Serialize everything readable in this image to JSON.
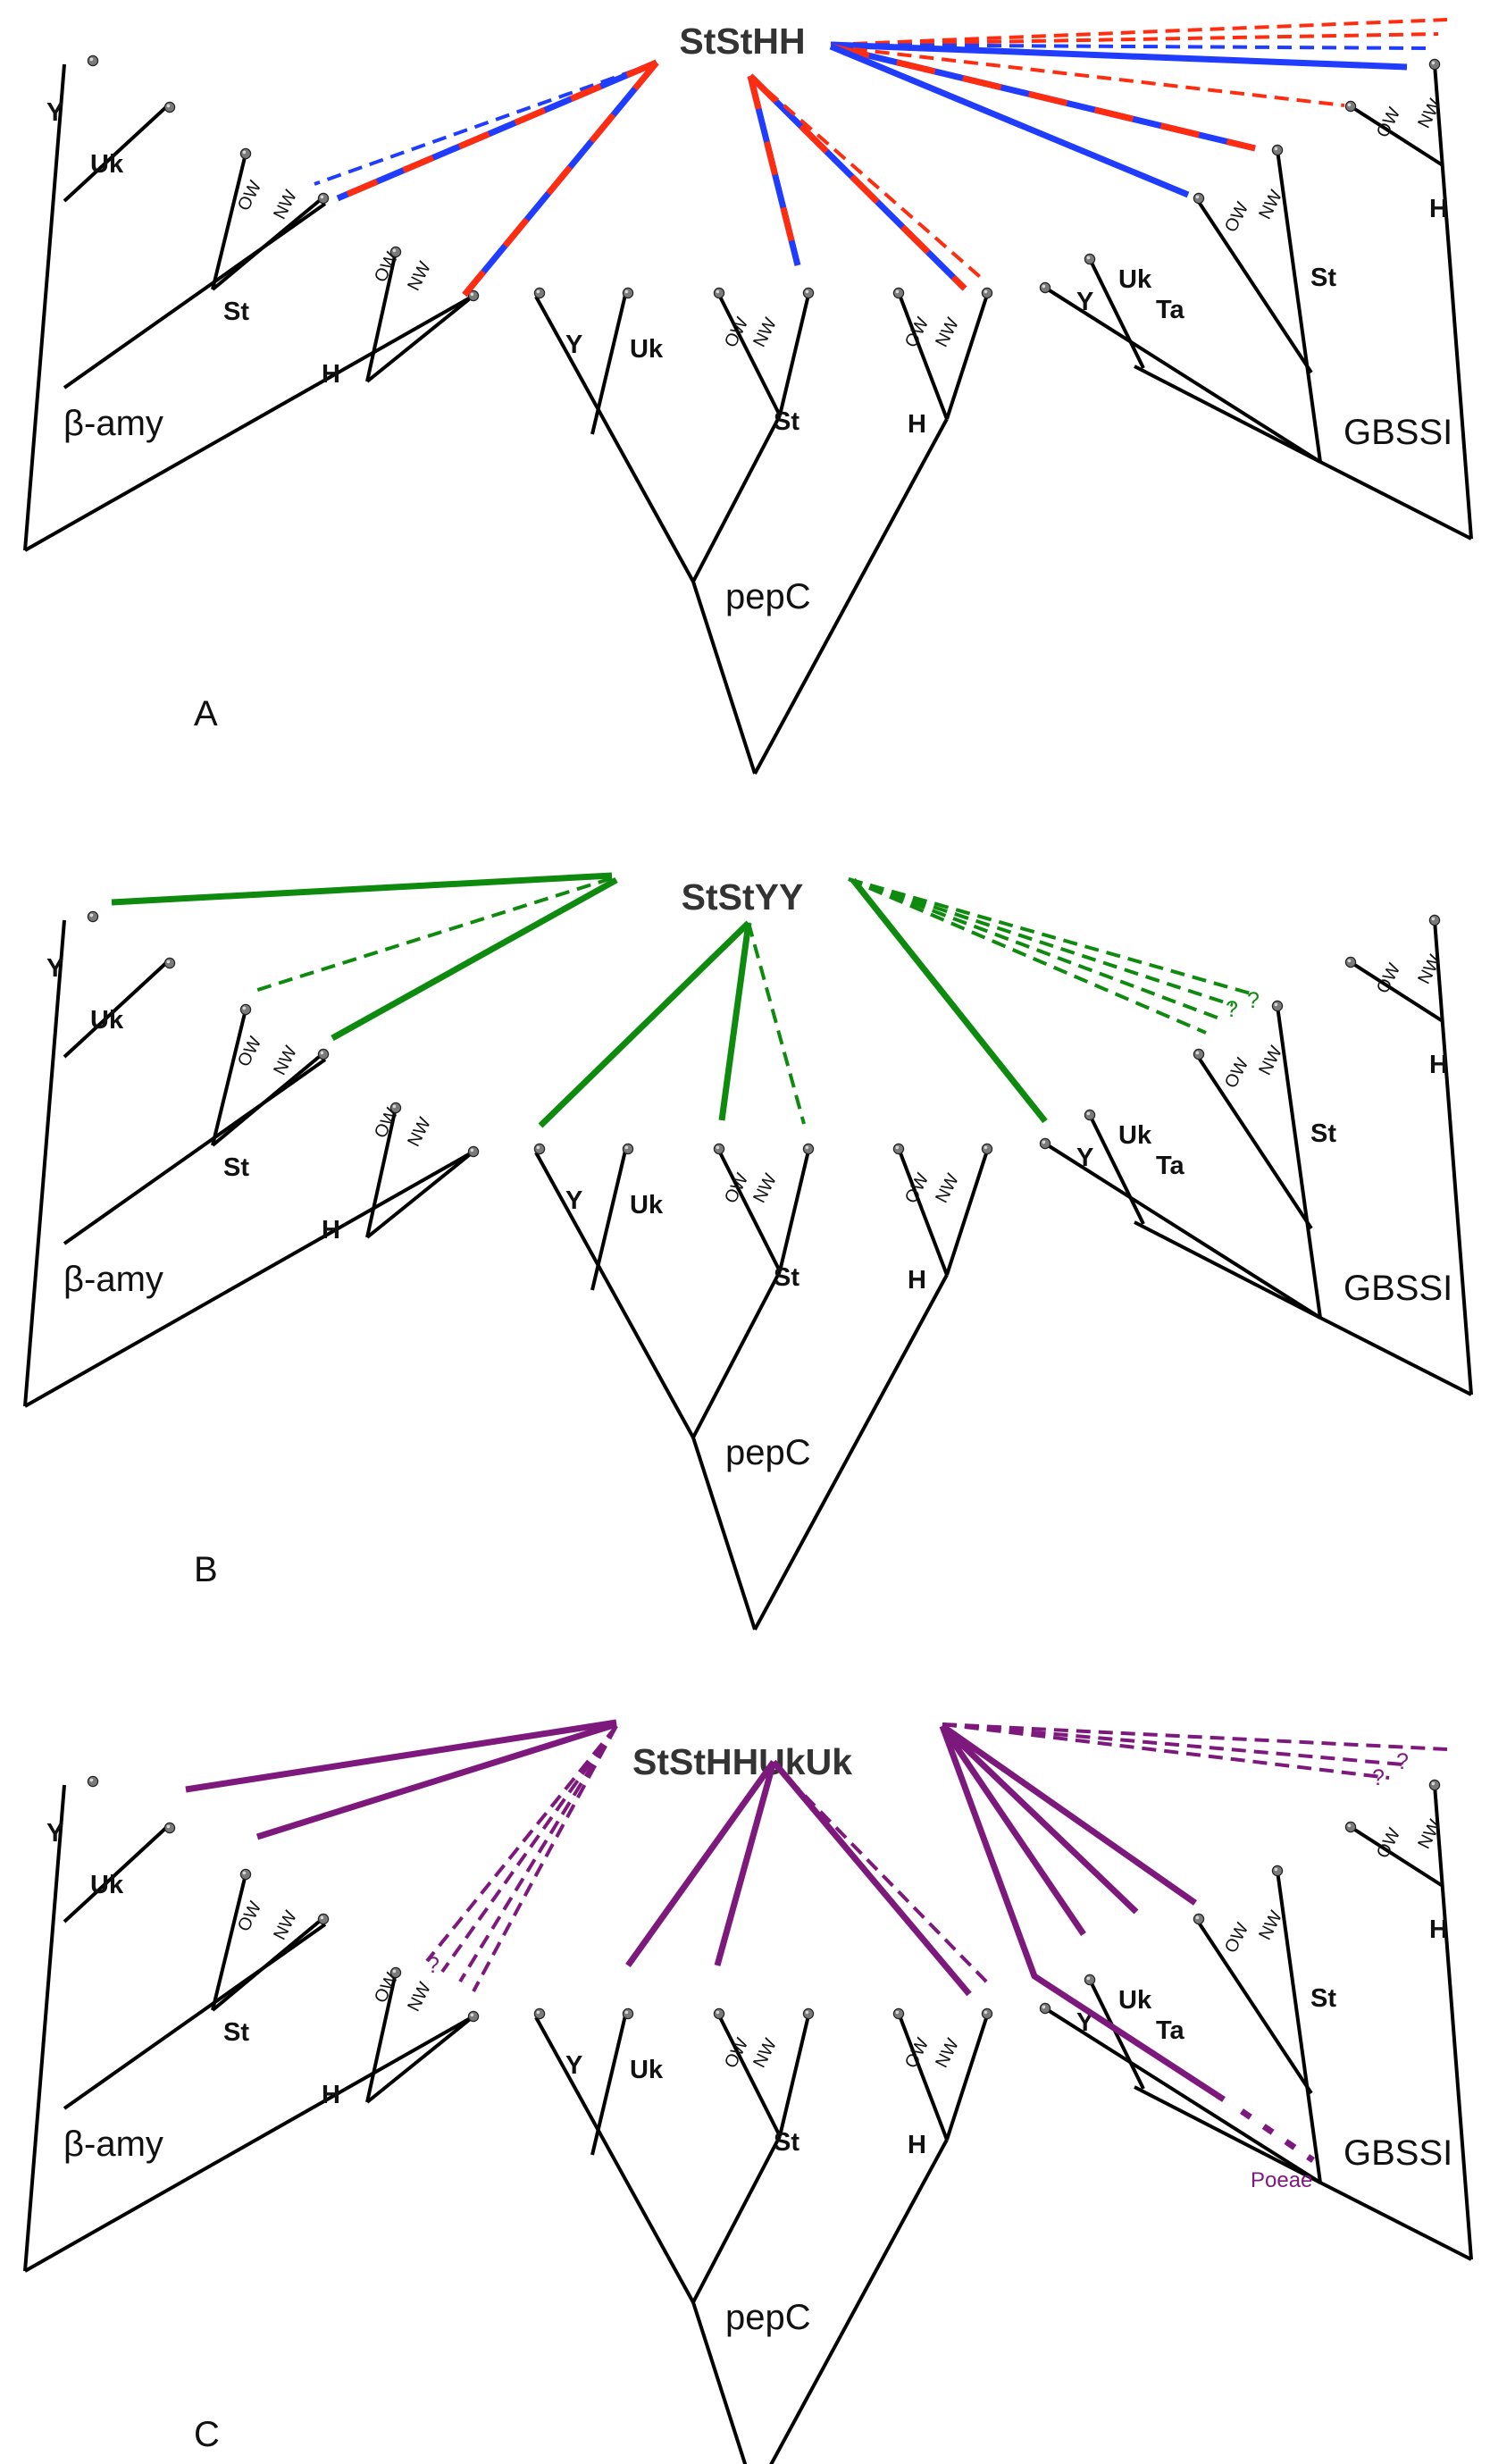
{
  "colors": {
    "branch": "#000000",
    "red": "#ff2d0f",
    "blue": "#1f3cff",
    "green": "#0e8a0e",
    "purple": "#7d197d"
  },
  "panels": [
    {
      "letter": "A",
      "genome": "StStHH",
      "trees": {
        "left": "β-amy",
        "middle": "pepC",
        "right": "GBSSI"
      }
    },
    {
      "letter": "B",
      "genome": "StStYY",
      "trees": {
        "left": "β-amy",
        "middle": "pepC",
        "right": "GBSSI"
      }
    },
    {
      "letter": "C",
      "genome": "StStHHUkUk",
      "trees": {
        "left": "β-amy",
        "middle": "pepC",
        "right": "GBSSI"
      },
      "extra_label": "Poeae"
    }
  ],
  "clade_labels": {
    "Y": "Y",
    "Uk": "Uk",
    "St": "St",
    "H": "H",
    "Ta": "Ta",
    "OW": "OW",
    "NW": "NW"
  },
  "uncertain_mark": "?"
}
